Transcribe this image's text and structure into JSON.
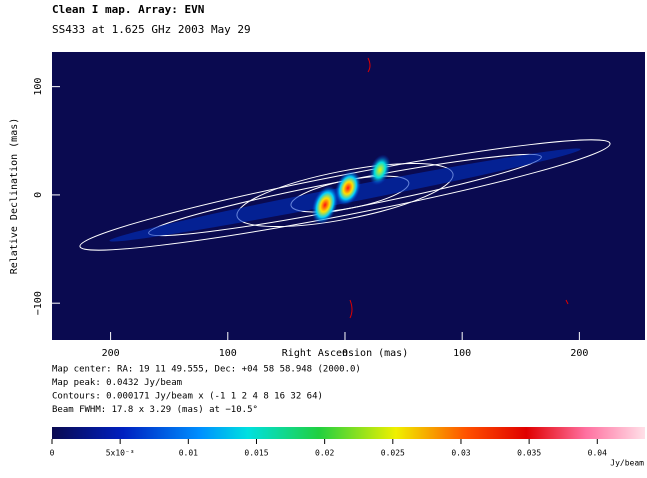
{
  "chart_data": {
    "type": "image",
    "title": "Clean I map.  Array: EVN",
    "subtitle": "SS433 at 1.625 GHz 2003 May 29",
    "xlabel": "Right Ascension  (mas)",
    "ylabel": "Relative Declination  (mas)",
    "xlim": [
      250,
      -256
    ],
    "xticks": [
      200,
      100,
      0,
      {
        "value": -100,
        "label": "100"
      },
      {
        "value": -200,
        "label": "200"
      }
    ],
    "ylim": [
      -134,
      132
    ],
    "yticks": [
      100,
      0,
      {
        "value": -100,
        "label": "−100"
      }
    ],
    "notes": [
      "Map center:  RA: 19 11 49.555,  Dec: +04 58 58.948 (2000.0)",
      "Map peak: 0.0432 Jy/beam",
      "Contours: 0.000171 Jy/beam x (-1 1 2 4 8 16 32 64)",
      "Beam FWHM: 17.8 x 3.29 (mas) at −10.5°"
    ],
    "colorbar": {
      "lim": [
        0,
        0.0435
      ],
      "ticks": [
        0,
        {
          "value": 0.005,
          "label": "5x10⁻³"
        },
        0.01,
        0.015,
        0.02,
        0.025,
        0.03,
        0.035,
        0.04
      ],
      "label": "Jy/beam"
    }
  }
}
